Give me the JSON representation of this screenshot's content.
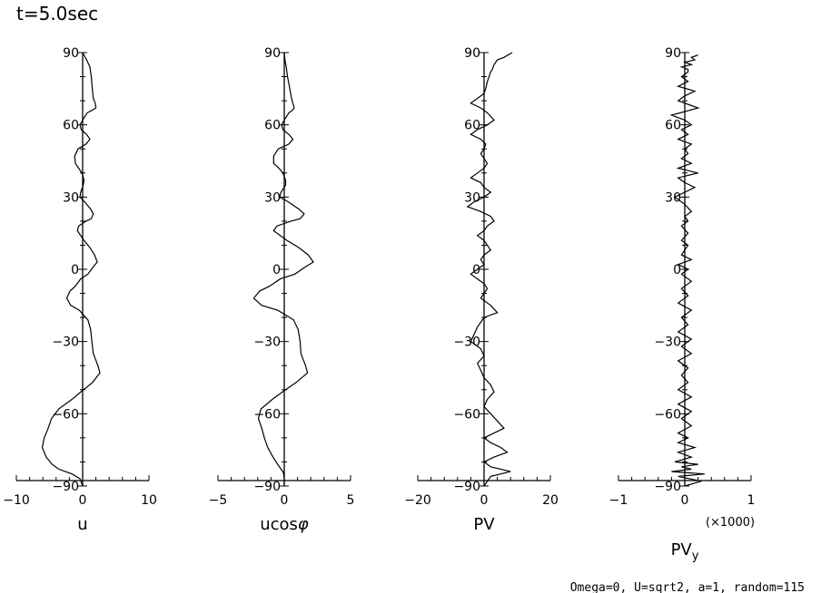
{
  "header": {
    "time_label": "t=5.0sec"
  },
  "footer": {
    "params": "Omega=0, U=sqrt2, a=1, random=115"
  },
  "style": {
    "line_color": "#000000",
    "background": "#ffffff"
  },
  "chart_data": [
    {
      "type": "line",
      "title": "",
      "xlabel": "u",
      "ylabel": "",
      "xlim": [
        -10,
        10
      ],
      "ylim": [
        -90,
        90
      ],
      "xticks": [
        -10,
        0,
        10
      ],
      "yticks": [
        90,
        60,
        30,
        0,
        -30,
        -60,
        -90
      ],
      "x_multiplier_label": "",
      "series": [
        {
          "x": [
            0,
            0.6,
            1.1,
            1.3,
            1.4,
            1.5,
            1.6,
            1.9,
            2.0,
            1.4,
            0.7,
            0.0,
            -0.4,
            -0.2,
            0.6,
            1.1,
            0.5,
            -0.7,
            -1.2,
            -1.1,
            -0.6,
            -0.1,
            0.2,
            0.1,
            -0.3,
            -0.4,
            0.3,
            1.2,
            1.6,
            1.3,
            0.5,
            -0.6,
            -0.8,
            0.2,
            1.1,
            1.8,
            2.2,
            1.6,
            0.8,
            -0.3,
            -1.1,
            -1.9,
            -2.4,
            -1.8,
            -0.5,
            0.8,
            1.2,
            1.4,
            1.6,
            2.3,
            2.6,
            1.5,
            -0.3,
            -1.6,
            -3.6,
            -4.7,
            -5.2,
            -5.8,
            -6.1,
            -5.5,
            -4.6,
            -3.6,
            -2.6,
            -1.6,
            -0.4,
            0
          ],
          "y": [
            90,
            87,
            84,
            80,
            77,
            74,
            71,
            69,
            67,
            66,
            65,
            62,
            60,
            58,
            56,
            54,
            52,
            50,
            47,
            44,
            42,
            40,
            37,
            35,
            32,
            30,
            28,
            25,
            23,
            21,
            20,
            18,
            16,
            12,
            9,
            6,
            3,
            1,
            -2,
            -4,
            -7,
            -9,
            -12,
            -15,
            -17,
            -21,
            -25,
            -30,
            -35,
            -40,
            -43,
            -47,
            -51,
            -54,
            -58,
            -62,
            -66,
            -70,
            -74,
            -78,
            -81,
            -83,
            -84,
            -85,
            -87,
            -90
          ]
        }
      ]
    },
    {
      "type": "line",
      "title": "",
      "xlabel": "ucosφ",
      "ylabel": "",
      "xlim": [
        -5,
        5
      ],
      "ylim": [
        -90,
        90
      ],
      "xticks": [
        -5,
        0,
        5
      ],
      "yticks": [
        90,
        60,
        30,
        0,
        -30,
        -60,
        -90
      ],
      "x_multiplier_label": "",
      "series": [
        {
          "x": [
            0,
            0.05,
            0.15,
            0.25,
            0.35,
            0.45,
            0.55,
            0.65,
            0.75,
            0.6,
            0.35,
            0.0,
            -0.2,
            -0.1,
            0.35,
            0.65,
            0.35,
            -0.45,
            -0.8,
            -0.8,
            -0.4,
            -0.1,
            0.1,
            0.1,
            -0.25,
            -0.35,
            0.3,
            1.1,
            1.5,
            1.2,
            0.5,
            -0.55,
            -0.8,
            0.2,
            1.1,
            1.8,
            2.2,
            1.6,
            0.8,
            -0.3,
            -1.1,
            -1.85,
            -2.3,
            -1.7,
            -0.5,
            0.7,
            1.05,
            1.2,
            1.25,
            1.6,
            1.75,
            0.9,
            -0.15,
            -0.9,
            -1.75,
            -1.95,
            -1.7,
            -1.5,
            -1.25,
            -0.85,
            -0.5,
            -0.25,
            -0.1,
            -0.05,
            0,
            0
          ],
          "y": [
            90,
            87,
            84,
            80,
            77,
            74,
            71,
            69,
            67,
            66,
            65,
            62,
            60,
            58,
            56,
            54,
            52,
            50,
            47,
            44,
            42,
            40,
            37,
            35,
            32,
            30,
            28,
            25,
            23,
            21,
            20,
            18,
            16,
            12,
            9,
            6,
            3,
            1,
            -2,
            -4,
            -7,
            -9,
            -12,
            -15,
            -17,
            -21,
            -25,
            -30,
            -35,
            -40,
            -43,
            -47,
            -51,
            -54,
            -58,
            -62,
            -66,
            -70,
            -74,
            -78,
            -81,
            -83,
            -84,
            -85,
            -87,
            -90
          ]
        }
      ]
    },
    {
      "type": "line",
      "title": "",
      "xlabel": "PV",
      "ylabel": "",
      "xlim": [
        -20,
        20
      ],
      "ylim": [
        -90,
        90
      ],
      "xticks": [
        -20,
        0,
        20
      ],
      "yticks": [
        90,
        60,
        30,
        0,
        -30,
        -60,
        -90
      ],
      "x_multiplier_label": "",
      "series": [
        {
          "x": [
            8.5,
            6,
            4,
            3,
            2.5,
            2,
            1.5,
            1,
            0.5,
            0,
            -2,
            -4,
            -1,
            1,
            3,
            1,
            -2,
            -4,
            -1,
            0.5,
            0,
            -1,
            0,
            1,
            0,
            -2,
            -4,
            -1,
            0,
            2,
            0,
            -3,
            -5,
            -1,
            2,
            3,
            1,
            0,
            -2,
            0,
            1,
            2,
            0,
            -1,
            0,
            -2,
            -4,
            -2,
            0,
            1,
            0,
            -1,
            2,
            4,
            0,
            -2,
            -3,
            -4,
            -1,
            0,
            -2,
            -1,
            0,
            2,
            3,
            1,
            0,
            2,
            4,
            6,
            3,
            0,
            2,
            5,
            7,
            3,
            0,
            2,
            5,
            8,
            2,
            0
          ],
          "y": [
            90,
            88,
            87,
            85,
            83,
            82,
            80,
            78,
            75,
            73,
            71,
            69,
            67,
            65,
            62,
            60,
            58,
            56,
            54,
            52,
            50,
            48,
            46,
            44,
            42,
            40,
            38,
            36,
            34,
            32,
            30,
            28,
            26,
            24,
            22,
            20,
            18,
            16,
            14,
            12,
            10,
            8,
            6,
            4,
            2,
            0,
            -2,
            -4,
            -6,
            -8,
            -10,
            -12,
            -15,
            -18,
            -20,
            -24,
            -27,
            -30,
            -33,
            -36,
            -39,
            -42,
            -45,
            -48,
            -51,
            -54,
            -57,
            -60,
            -63,
            -66,
            -68,
            -70,
            -72,
            -74,
            -76,
            -78,
            -80,
            -82,
            -83,
            -84,
            -86,
            -90
          ]
        }
      ]
    },
    {
      "type": "line",
      "title": "",
      "xlabel": "PVy",
      "ylabel": "",
      "xlim": [
        -1,
        1
      ],
      "ylim": [
        -90,
        90
      ],
      "xticks": [
        -1,
        0,
        1
      ],
      "yticks": [
        90,
        60,
        30,
        0,
        -30,
        -60,
        -90
      ],
      "x_multiplier_label": "(×1000)",
      "series": [
        {
          "x": [
            0.2,
            0.1,
            0.15,
            0,
            0.1,
            -0.05,
            0.05,
            0.05,
            -0.05,
            0.05,
            -0.1,
            0.15,
            0,
            -0.1,
            0.2,
            -0.2,
            0,
            0.1,
            -0.05,
            0.05,
            -0.1,
            0.1,
            0,
            0.05,
            -0.05,
            0.1,
            -0.1,
            0.2,
            -0.1,
            0,
            0.15,
            0,
            -0.15,
            0,
            0.1,
            0,
            0.05,
            -0.05,
            0.05,
            -0.05,
            0.05,
            0,
            -0.05,
            0.1,
            -0.1,
            0.05,
            -0.05,
            0.1,
            -0.05,
            0.05,
            -0.1,
            0.1,
            -0.05,
            0.05,
            -0.1,
            0.1,
            -0.05,
            0.1,
            -0.1,
            0.05,
            -0.05,
            0.05,
            -0.1,
            0.1,
            -0.1,
            0.1,
            -0.05,
            0.1,
            -0.1,
            0.05,
            -0.1,
            0.15,
            -0.1,
            0.1,
            -0.15,
            0.2,
            -0.05,
            0.1,
            -0.2,
            0.3,
            -0.1,
            0.25,
            0
          ],
          "y": [
            89,
            88,
            87,
            86,
            85,
            84,
            83,
            82,
            80,
            78,
            76,
            74,
            72,
            70,
            67,
            64,
            62,
            60,
            58,
            56,
            54,
            52,
            50,
            48,
            46,
            44,
            42,
            40,
            38,
            36,
            34,
            32,
            30,
            27,
            24,
            22,
            20,
            18,
            15,
            12,
            10,
            8,
            6,
            4,
            2,
            0,
            -2,
            -5,
            -8,
            -11,
            -14,
            -17,
            -20,
            -23,
            -26,
            -29,
            -32,
            -35,
            -38,
            -41,
            -44,
            -47,
            -50,
            -53,
            -56,
            -59,
            -62,
            -65,
            -68,
            -70,
            -72,
            -74,
            -76,
            -78,
            -80,
            -81,
            -82,
            -83,
            -84,
            -85,
            -86,
            -88,
            -90
          ]
        }
      ]
    }
  ]
}
